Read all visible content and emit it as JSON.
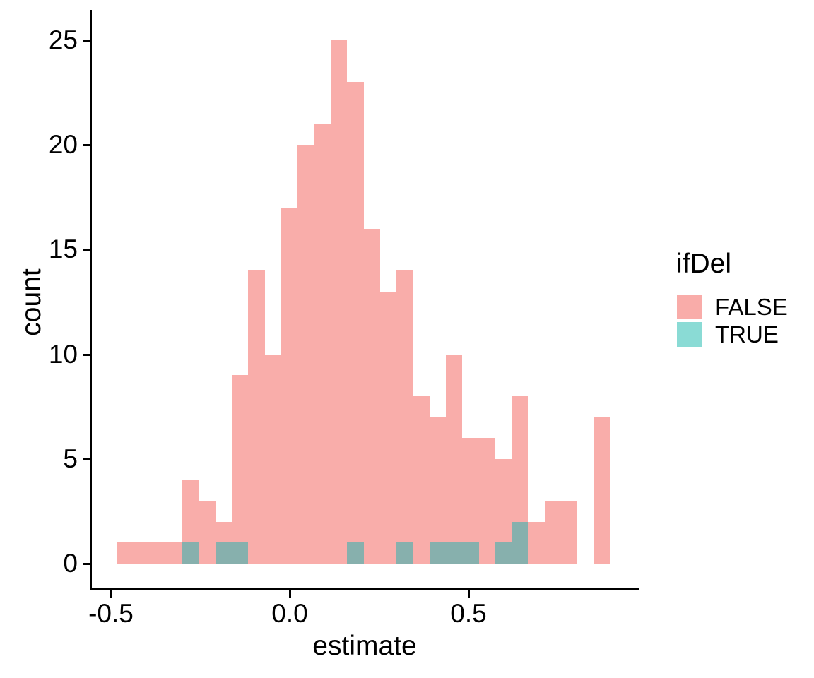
{
  "chart_data": {
    "type": "bar",
    "variant": "overlaid-histogram",
    "title": "",
    "xlabel": "estimate",
    "ylabel": "count",
    "grid": false,
    "legend": {
      "title": "ifDel",
      "position": "right",
      "entries": [
        {
          "label": "FALSE",
          "color": "#F9ACA9"
        },
        {
          "label": "TRUE",
          "color": "#8ADBD5"
        }
      ]
    },
    "x_tick_labels": [
      "-0.5",
      "0.0",
      "0.5"
    ],
    "x_tick_values": [
      -0.5,
      0.0,
      0.5
    ],
    "y_tick_labels": [
      "0",
      "5",
      "10",
      "15",
      "20",
      "25"
    ],
    "y_tick_values": [
      0,
      5,
      10,
      15,
      20,
      25
    ],
    "xlim": [
      -0.553,
      0.978
    ],
    "ylim": [
      -1.25,
      26.4
    ],
    "bin_width": 0.046033,
    "bin_starts": [
      -0.484,
      -0.438,
      -0.3919,
      -0.3459,
      -0.2999,
      -0.2538,
      -0.2078,
      -0.1618,
      -0.1157,
      -0.0697,
      -0.0237,
      0.0224,
      0.0684,
      0.1144,
      0.1605,
      0.2065,
      0.2525,
      0.2986,
      0.3446,
      0.3906,
      0.4367,
      0.4827,
      0.5287,
      0.5748,
      0.6208,
      0.6668,
      0.7129,
      0.7589,
      0.8049,
      0.851
    ],
    "series": [
      {
        "name": "FALSE",
        "color": "#F9ADAA",
        "values": [
          1,
          1,
          1,
          1,
          4,
          3,
          2,
          9,
          14,
          10,
          17,
          20,
          21,
          25,
          23,
          16,
          13,
          14,
          8,
          7,
          10,
          6,
          6,
          5,
          8,
          2,
          3,
          3,
          0,
          7
        ]
      },
      {
        "name": "TRUE",
        "color": "#87B0AD",
        "legend_color": "#8ADBD5",
        "values": [
          0,
          0,
          0,
          0,
          1,
          0,
          1,
          1,
          0,
          0,
          0,
          0,
          0,
          0,
          1,
          0,
          0,
          1,
          0,
          1,
          1,
          1,
          0,
          1,
          2,
          0,
          0,
          0,
          0,
          0
        ]
      }
    ]
  }
}
